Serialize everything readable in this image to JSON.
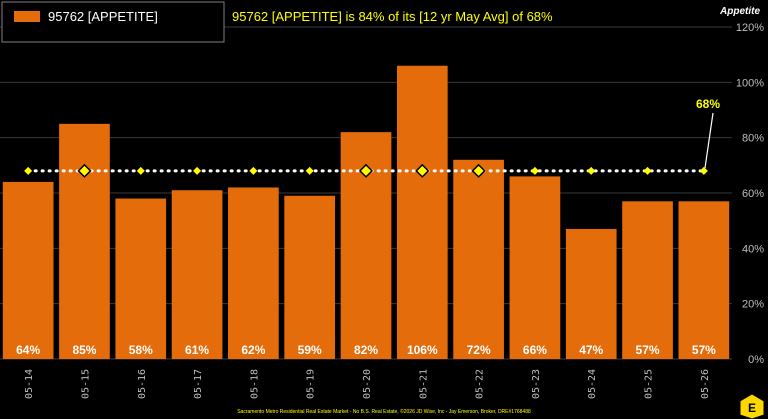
{
  "legend": {
    "label": "95762 [APPETITE]"
  },
  "subtitle": "95762 [APPETITE] is 84% of its [12 yr May Avg] of 68%",
  "axis_title": "Appetite",
  "avg_label": "68%",
  "footer": "Sacramento Metro Residential Real Estate Market - No B.S. Real Estate, ©2026 JD Wise, Inc - Jay Emerson, Broker, DRE#1768488",
  "logo_letter": "E",
  "colors": {
    "bar": "#E46C0A",
    "avg_line": "#FFFFFF",
    "avg_marker": "#FFFF00",
    "subtitle": "#FFFF00",
    "grid": "#3a3a3a",
    "text": "#FFFFFF",
    "axis_text": "#BFBFBF"
  },
  "chart_data": {
    "type": "bar",
    "categories": [
      "05-14",
      "05-15",
      "05-16",
      "05-17",
      "05-18",
      "05-19",
      "05-20",
      "05-21",
      "05-22",
      "05-23",
      "05-24",
      "05-25",
      "05-26"
    ],
    "series": [
      {
        "name": "95762 [APPETITE]",
        "values": [
          64,
          85,
          58,
          61,
          62,
          59,
          82,
          106,
          72,
          66,
          47,
          57,
          57
        ]
      }
    ],
    "data_labels": [
      "64%",
      "85%",
      "58%",
      "61%",
      "62%",
      "59%",
      "82%",
      "106%",
      "72%",
      "66%",
      "47%",
      "57%",
      "57%"
    ],
    "average": {
      "value": 68
    },
    "ylim": [
      0,
      120
    ],
    "yticks": [
      0,
      20,
      40,
      60,
      80,
      100,
      120
    ],
    "ytick_labels": [
      "0%",
      "20%",
      "40%",
      "60%",
      "80%",
      "100%",
      "120%"
    ],
    "ylabel": "Appetite",
    "grid": true,
    "legend_position": "top-left"
  }
}
